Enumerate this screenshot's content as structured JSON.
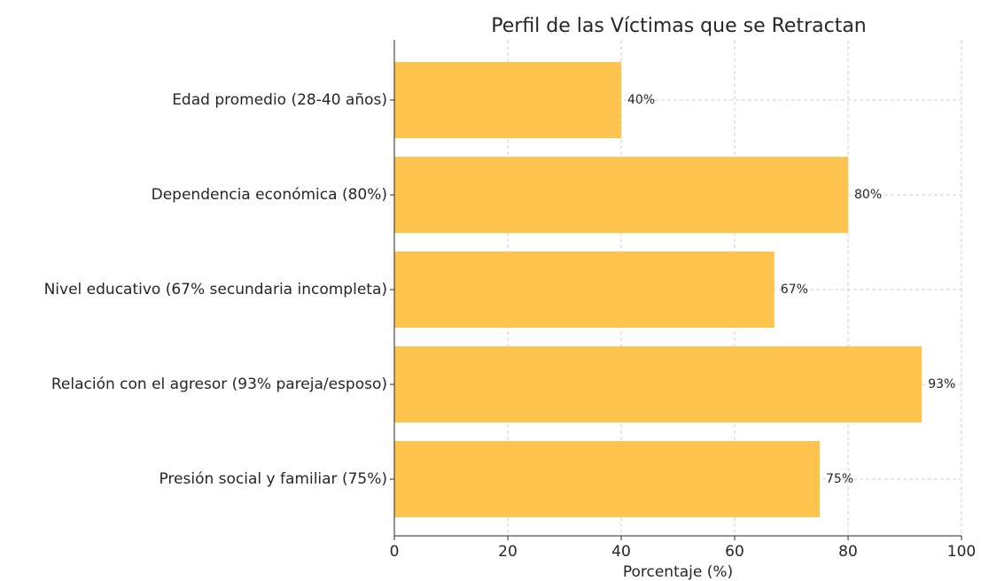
{
  "chart_data": {
    "type": "bar",
    "orientation": "horizontal",
    "title": "Perfil de las Víctimas que se Retractan",
    "xlabel": "Porcentaje (%)",
    "categories": [
      "Edad promedio (28-40 años)",
      "Dependencia económica (80%)",
      "Nivel educativo (67% secundaria incompleta)",
      "Relación con el agresor (93% pareja/esposo)",
      "Presión social y familiar (75%)"
    ],
    "values": [
      40,
      80,
      67,
      93,
      75
    ],
    "value_labels": [
      "40%",
      "80%",
      "67%",
      "93%",
      "75%"
    ],
    "color": "#ffc44d",
    "xlim": [
      0,
      100
    ],
    "xticks": [
      0,
      20,
      40,
      60,
      80,
      100
    ],
    "grid": true
  }
}
